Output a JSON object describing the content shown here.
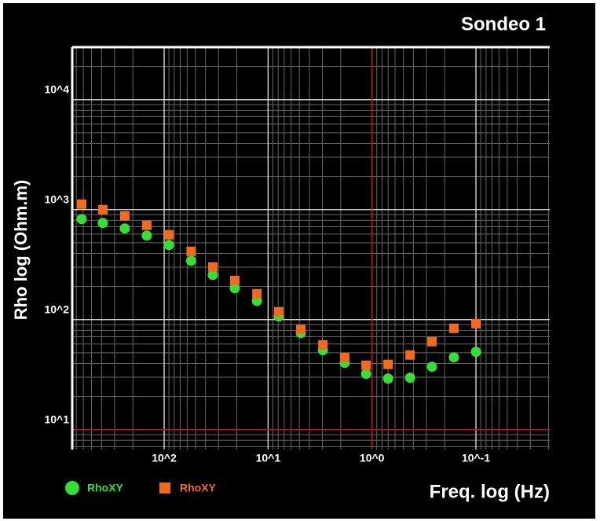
{
  "chart_data": {
    "type": "scatter",
    "title": "Sondeo 1",
    "x_label": "Freq. log (Hz)",
    "y_label": "Rho log (Ohm.m)",
    "x": [
      622,
      389,
      239,
      147,
      90,
      55,
      34,
      20.9,
      12.8,
      7.9,
      4.84,
      2.97,
      1.83,
      1.14,
      0.7,
      0.43,
      0.265,
      0.163,
      0.1
    ],
    "series": [
      {
        "name": "RhoXY",
        "color": "#33e033",
        "marker": "circle",
        "values": [
          820,
          757,
          674,
          581,
          477,
          343,
          255,
          193,
          148,
          107,
          75.6,
          52.7,
          40.5,
          32.1,
          29.1,
          29.6,
          37.3,
          45.4,
          50.9
        ]
      },
      {
        "name": "RhoXY",
        "color": "#f26b1d",
        "marker": "square",
        "values": [
          1122,
          1000,
          877,
          720,
          591,
          418,
          301,
          227,
          172,
          118,
          82,
          59,
          45.4,
          38.5,
          39.2,
          47.7,
          63.1,
          83.4,
          92
        ]
      }
    ],
    "xlim": [
      766,
      0.0195
    ],
    "ylim": [
      6.6,
      30000
    ],
    "xticks": [
      {
        "value": 100,
        "label": "10^2"
      },
      {
        "value": 10,
        "label": "10^1"
      },
      {
        "value": 1,
        "label": "10^0"
      },
      {
        "value": 0.1,
        "label": "10^-1"
      }
    ],
    "yticks": [
      {
        "value": 10,
        "label": "10^1"
      },
      {
        "value": 100,
        "label": "10^2"
      },
      {
        "value": 1000,
        "label": "10^3"
      },
      {
        "value": 10000,
        "label": "10^4"
      }
    ],
    "log_x": true,
    "log_y": true,
    "grid": true,
    "minor_grid": true,
    "reference_lines": {
      "x": 1,
      "y": 10,
      "color": "#c0141a"
    },
    "legend": "bottom-left"
  }
}
